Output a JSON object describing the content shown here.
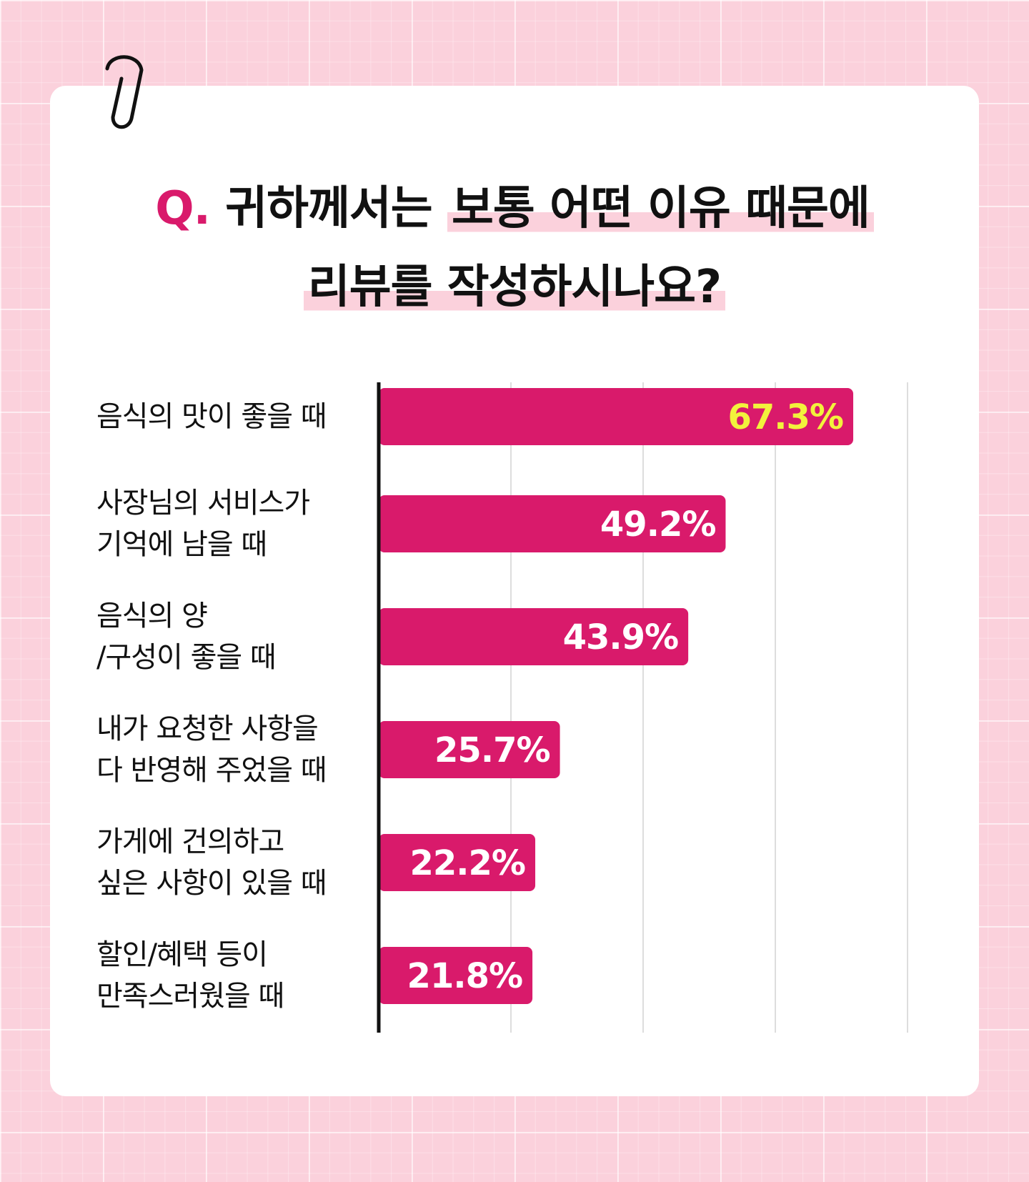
{
  "header": {
    "q_mark": "Q.",
    "title_line1_plain": "귀하께서는",
    "title_line1_highlight": "보통 어떤 이유 때문에",
    "title_line2_highlight": "리뷰를 작성하시나요?"
  },
  "colors": {
    "bar": "#d91a6b",
    "top_value_label": "#f2f23c",
    "value_label": "#ffffff",
    "accent": "#d91a6b",
    "background": "#fbd1dc",
    "gridline": "#dddddd",
    "axis": "#111111"
  },
  "icons": {
    "decoration": "paperclip-icon"
  },
  "chart_data": {
    "type": "bar",
    "orientation": "horizontal",
    "title": "Q. 귀하께서는 보통 어떤 이유 때문에 리뷰를 작성하시나요?",
    "categories": [
      [
        "음식의 맛이 좋을 때"
      ],
      [
        "사장님의 서비스가",
        "기억에 남을 때"
      ],
      [
        "음식의 양",
        "/구성이 좋을 때"
      ],
      [
        "내가 요청한 사항을",
        "다 반영해 주었을 때"
      ],
      [
        "가게에 건의하고",
        "싶은 사항이 있을 때"
      ],
      [
        "할인/혜택 등이",
        "만족스러웠을 때"
      ]
    ],
    "values": [
      67.3,
      49.2,
      43.9,
      25.7,
      22.2,
      21.8
    ],
    "value_labels": [
      "67.3%",
      "49.2%",
      "43.9%",
      "25.7%",
      "22.2%",
      "21.8%"
    ],
    "unit": "%",
    "xlim": [
      0,
      75
    ],
    "grid": true,
    "legend": "none"
  }
}
